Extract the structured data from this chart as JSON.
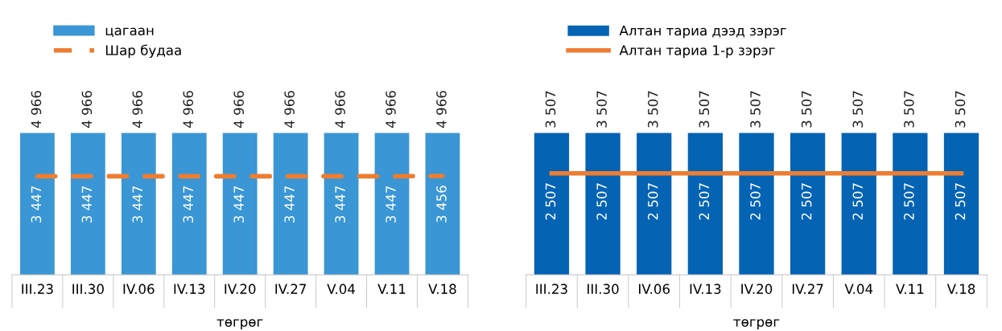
{
  "chart_data": [
    {
      "type": "bar",
      "xlabel": "төгрөг",
      "categories": [
        "III.23",
        "III.30",
        "IV.06",
        "IV.13",
        "IV.20",
        "IV.27",
        "V.04",
        "V.11",
        "V.18"
      ],
      "data_labels": true,
      "legend": "top left",
      "series": [
        {
          "name": "цагаан",
          "color": "#3a96d4",
          "values": [
            4966,
            4966,
            4966,
            4966,
            4966,
            4966,
            4966,
            4966,
            4966
          ]
        },
        {
          "name": "Шар будаа",
          "type": "line",
          "color": "#ed7d31",
          "line_style": "dashed",
          "marker": "none",
          "values": [
            3447,
            3447,
            3447,
            3447,
            3447,
            3447,
            3447,
            3447,
            3456
          ]
        }
      ]
    },
    {
      "type": "bar",
      "xlabel": "төгрөг",
      "categories": [
        "III.23",
        "III.30",
        "IV.06",
        "IV.13",
        "IV.20",
        "IV.27",
        "V.04",
        "V.11",
        "V.18"
      ],
      "data_labels": true,
      "legend": "top left",
      "series": [
        {
          "name": "Алтан тариа дээд зэрэг",
          "color": "#0563b4",
          "values": [
            3507,
            3507,
            3507,
            3507,
            3507,
            3507,
            3507,
            3507,
            3507
          ]
        },
        {
          "name": "Алтан тариа 1-р зэрэг",
          "type": "line",
          "color": "#ed7d31",
          "line_style": "solid",
          "marker": "none",
          "values": [
            2507,
            2507,
            2507,
            2507,
            2507,
            2507,
            2507,
            2507,
            2507
          ]
        }
      ]
    }
  ]
}
